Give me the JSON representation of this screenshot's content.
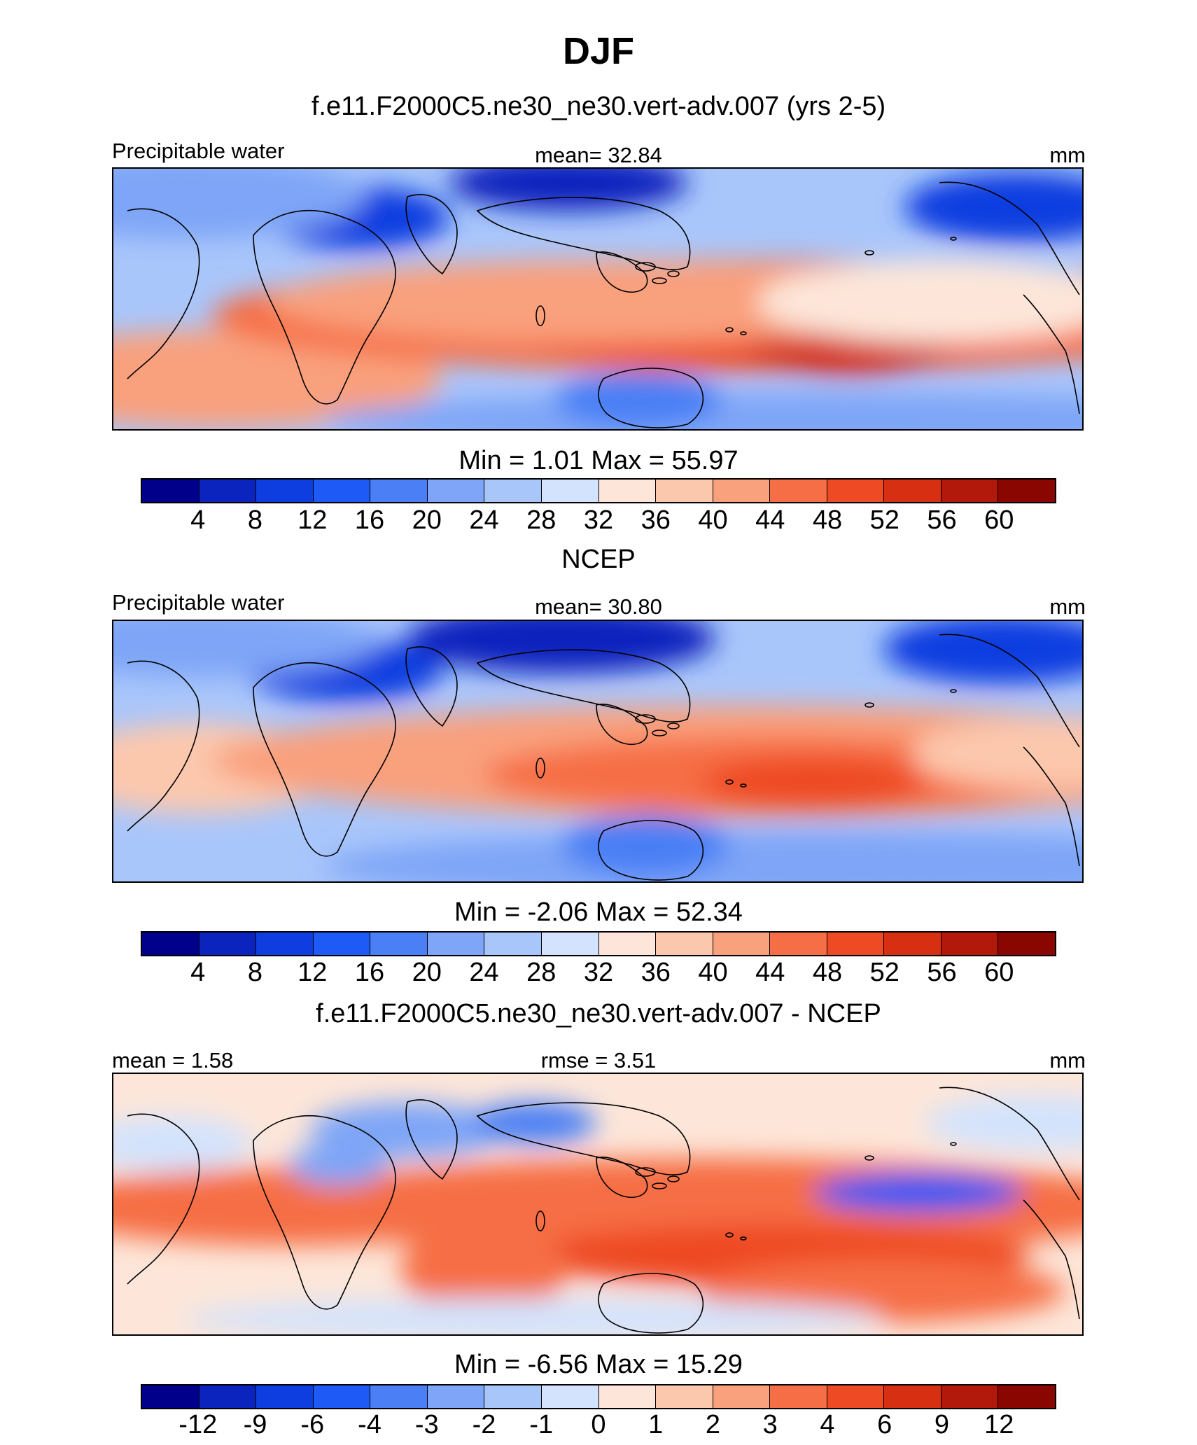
{
  "title": "DJF",
  "palette": [
    "#00008a",
    "#0a24bd",
    "#0f3ee0",
    "#1e5af5",
    "#4a7ff5",
    "#7ea5f7",
    "#a9c6fb",
    "#d3e3fd",
    "#fde6d9",
    "#fcc8ad",
    "#f9a07d",
    "#f66e45",
    "#ee4a24",
    "#d72f12",
    "#b3190a",
    "#8a0600"
  ],
  "panels": [
    {
      "panel_title": "f.e11.F2000C5.ne30_ne30.vert-adv.007 (yrs 2-5)",
      "left_label": "Precipitable water",
      "center_label": "mean=  32.84",
      "right_label": "mm",
      "minmax": "Min =   1.01 Max =  55.97",
      "ticks": [
        "4",
        "8",
        "12",
        "16",
        "20",
        "24",
        "28",
        "32",
        "36",
        "40",
        "44",
        "48",
        "52",
        "56",
        "60"
      ],
      "map_variant": "model"
    },
    {
      "panel_title": "NCEP",
      "left_label": "Precipitable water",
      "center_label": "mean=  30.80",
      "right_label": "mm",
      "minmax": "Min =  -2.06 Max =  52.34",
      "ticks": [
        "4",
        "8",
        "12",
        "16",
        "20",
        "24",
        "28",
        "32",
        "36",
        "40",
        "44",
        "48",
        "52",
        "56",
        "60"
      ],
      "map_variant": "obs"
    },
    {
      "panel_title": "f.e11.F2000C5.ne30_ne30.vert-adv.007 - NCEP",
      "left_label": "mean =   1.58",
      "center_label": "rmse =   3.51",
      "right_label": "mm",
      "minmax": "Min =  -6.56 Max =  15.29",
      "ticks": [
        "-12",
        "-9",
        "-6",
        "-4",
        "-3",
        "-2",
        "-1",
        "0",
        "1",
        "2",
        "3",
        "4",
        "6",
        "9",
        "12"
      ],
      "map_variant": "diff"
    }
  ],
  "chart_data": [
    {
      "type": "heatmap",
      "title": "f.e11.F2000C5.ne30_ne30.vert-adv.007 (yrs 2-5)",
      "variable": "Precipitable water",
      "units": "mm",
      "mean": 32.84,
      "min": 1.01,
      "max": 55.97,
      "levels": [
        4,
        8,
        12,
        16,
        20,
        24,
        28,
        32,
        36,
        40,
        44,
        48,
        52,
        56,
        60
      ]
    },
    {
      "type": "heatmap",
      "title": "NCEP",
      "variable": "Precipitable water",
      "units": "mm",
      "mean": 30.8,
      "min": -2.06,
      "max": 52.34,
      "levels": [
        4,
        8,
        12,
        16,
        20,
        24,
        28,
        32,
        36,
        40,
        44,
        48,
        52,
        56,
        60
      ]
    },
    {
      "type": "heatmap",
      "title": "f.e11.F2000C5.ne30_ne30.vert-adv.007 - NCEP",
      "units": "mm",
      "mean": 1.58,
      "rmse": 3.51,
      "min": -6.56,
      "max": 15.29,
      "levels": [
        -12,
        -9,
        -6,
        -4,
        -3,
        -2,
        -1,
        0,
        1,
        2,
        3,
        4,
        6,
        9,
        12
      ]
    }
  ]
}
